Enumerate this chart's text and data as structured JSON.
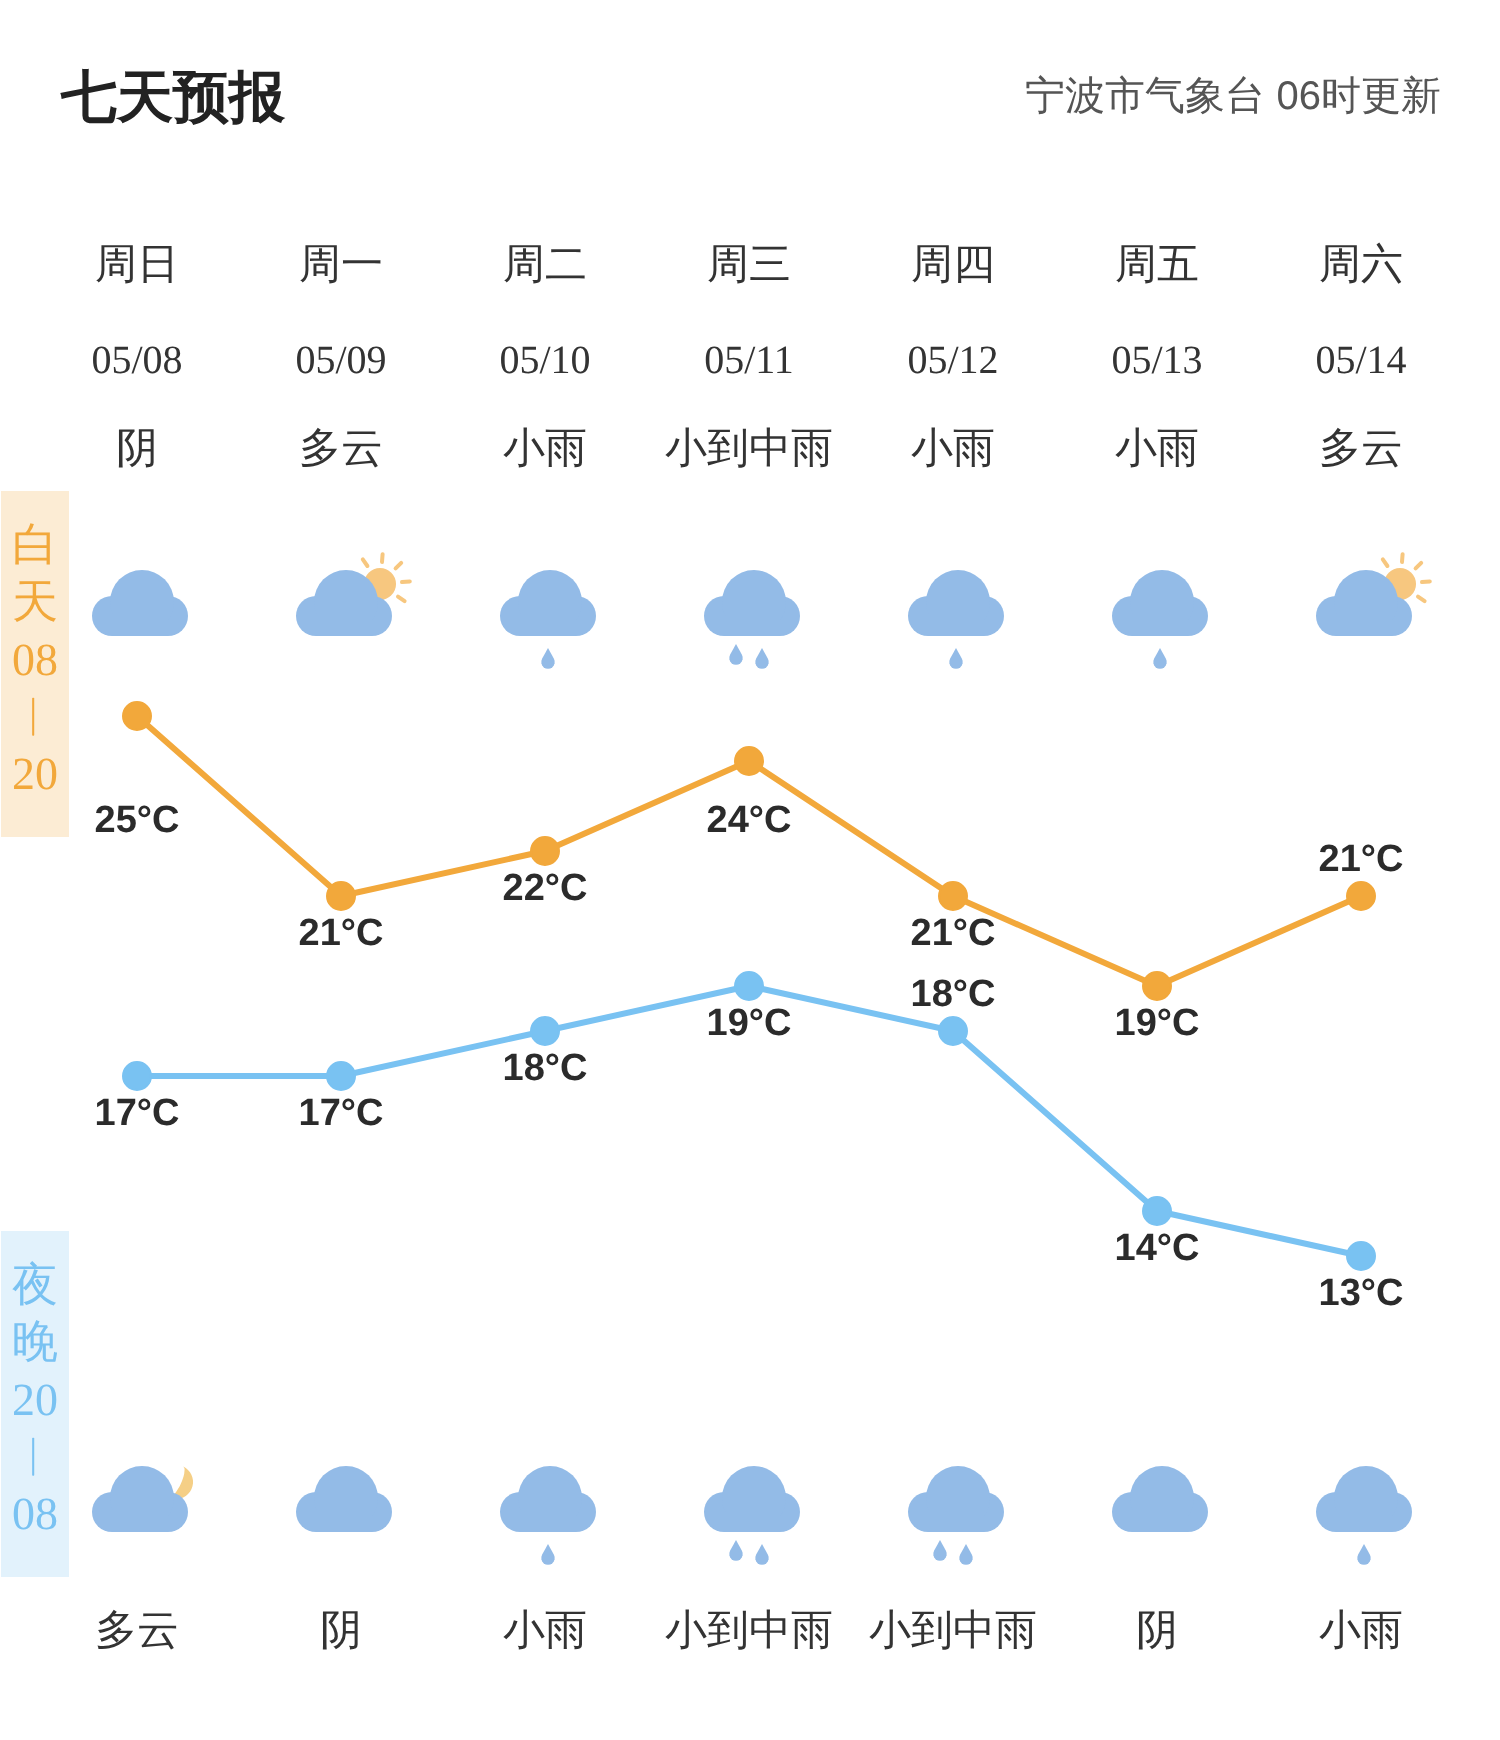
{
  "chart_data": {
    "type": "line",
    "title": "七天预报",
    "subtitle": "宁波市气象台 06时更新",
    "categories": [
      "周日\n05/08",
      "周一\n05/09",
      "周二\n05/10",
      "周三\n05/11",
      "周四\n05/12",
      "周五\n05/13",
      "周六\n05/14"
    ],
    "annotations": [
      "阴",
      "多云",
      "小雨",
      "小到中雨",
      "小雨",
      "小雨",
      "多云",
      "多云",
      "阴",
      "小雨",
      "小到中雨",
      "小到中雨",
      "阴",
      "小雨"
    ],
    "series": [
      {
        "name": "白天08︱20",
        "color": "#f2a83b",
        "values": [
          25,
          21,
          22,
          24,
          21,
          19,
          21
        ],
        "value_labels": [
          "25°C",
          "21°C",
          "22°C",
          "24°C",
          "21°C",
          "19°C",
          "21°C"
        ]
      },
      {
        "name": "夜晚20︱08",
        "color": "#79c2f2",
        "values": [
          17,
          17,
          18,
          19,
          18,
          14,
          13
        ],
        "value_labels": [
          "17°C",
          "17°C",
          "18°C",
          "19°C",
          "18°C",
          "14°C",
          "13°C"
        ]
      }
    ],
    "tick_labels": "x",
    "legend": "left",
    "marker": "circle",
    "line_style": "solid"
  }
}
